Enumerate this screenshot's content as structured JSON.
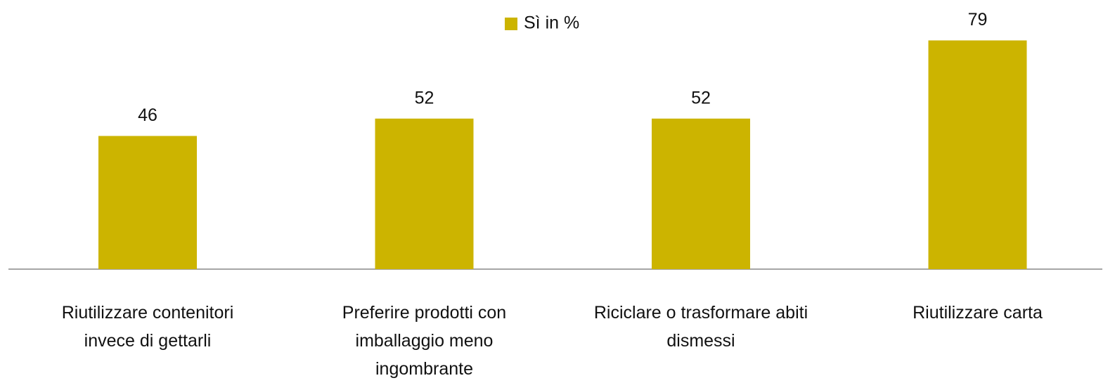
{
  "chart_data": {
    "type": "bar",
    "legend": "Sì in %",
    "color": "#ccb400",
    "categories": [
      "Riutilizzare contenitori invece di gettarli",
      "Preferire prodotti con imballaggio meno ingombrante",
      "Riciclare o trasformare abiti dismessi",
      "Riutilizzare carta"
    ],
    "values": [
      46,
      52,
      52,
      79
    ]
  }
}
